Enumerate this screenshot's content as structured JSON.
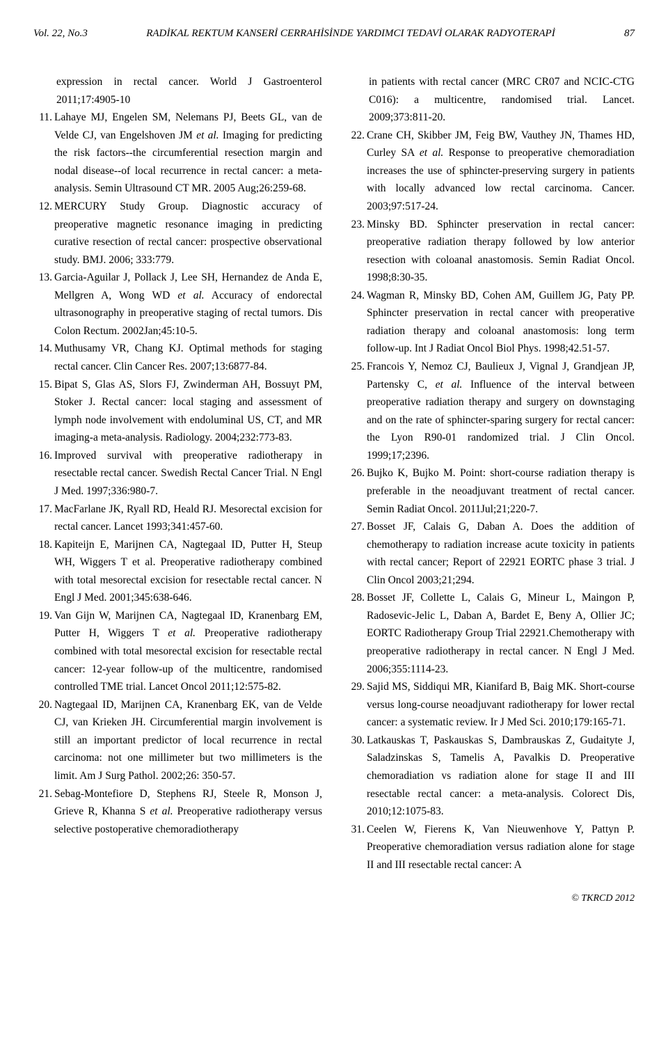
{
  "header": {
    "volume": "Vol. 22, No.3",
    "title": "RADİKAL REKTUM KANSERİ CERRAHİSİNDE YARDIMCI TEDAVİ OLARAK RADYOTERAPİ",
    "page": "87"
  },
  "left_continuation": "expression in rectal cancer. World J Gastroenterol 2011;17:4905-10",
  "refs_left": [
    {
      "n": "11.",
      "text": "Lahaye MJ, Engelen SM, Nelemans PJ, Beets GL, van de Velde CJ, van Engelshoven JM <span class='italic'>et al.</span> Imaging for predicting the risk factors--the circumferential resection margin and nodal disease--of local recurrence in rectal cancer: a meta-analysis. Semin Ultrasound CT MR. 2005 Aug;26:259-68."
    },
    {
      "n": "12.",
      "text": "MERCURY Study Group. Diagnostic accuracy of preoperative magnetic resonance imaging in predicting curative resection of rectal cancer: prospective observational study. BMJ. 2006; 333:779."
    },
    {
      "n": "13.",
      "text": "Garcia-Aguilar J, Pollack J, Lee SH, Hernandez de Anda E, Mellgren A, Wong WD <span class='italic'>et al.</span> Accuracy of endorectal ultrasonography in preoperative staging of rectal tumors. Dis Colon Rectum. 2002Jan;45:10-5."
    },
    {
      "n": "14.",
      "text": "Muthusamy VR, Chang KJ. Optimal methods for staging rectal cancer. Clin Cancer Res. 2007;13:6877-84."
    },
    {
      "n": "15.",
      "text": "Bipat S, Glas AS, Slors FJ, Zwinderman AH, Bossuyt PM, Stoker J. Rectal cancer: local staging and assessment of lymph node involvement with endoluminal US, CT, and MR imaging-a meta-analysis. Radiology. 2004;232:773-83."
    },
    {
      "n": "16.",
      "text": "Improved survival with preoperative radiotherapy in resectable rectal cancer. Swedish Rectal Cancer Trial. N Engl J Med. 1997;336:980-7."
    },
    {
      "n": "17.",
      "text": "MacFarlane JK, Ryall RD, Heald RJ. Mesorectal excision for rectal cancer. Lancet 1993;341:457-60."
    },
    {
      "n": "18.",
      "text": "Kapiteijn E, Marijnen CA, Nagtegaal ID, Putter H, Steup WH, Wiggers T et al. Preoperative radiotherapy combined with total mesorectal excision for resectable rectal cancer. N Engl J Med. 2001;345:638-646."
    },
    {
      "n": "19.",
      "text": "Van Gijn W, Marijnen CA, Nagtegaal ID, Kranenbarg EM, Putter H, Wiggers T <span class='italic'>et al.</span> Preoperative radiotherapy combined with total mesorectal excision for resectable rectal cancer: 12-year follow-up of the multicentre, randomised controlled TME trial. Lancet Oncol 2011;12:575-82."
    },
    {
      "n": "20.",
      "text": "Nagtegaal ID, Marijnen CA, Kranenbarg EK, van de Velde CJ, van Krieken JH. Circumferential margin involvement is still an important predictor of local recurrence in rectal carcinoma: not one millimeter but two millimeters is the limit. Am J Surg Pathol. 2002;26: 350-57."
    },
    {
      "n": "21.",
      "text": "Sebag-Montefiore D, Stephens RJ, Steele R, Monson J, Grieve R, Khanna S <span class='italic'>et al.</span> Preoperative radiotherapy versus selective postoperative chemoradiotherapy"
    }
  ],
  "right_continuation": "in patients with rectal cancer (MRC CR07 and NCIC-CTG C016): a multicentre, randomised trial. Lancet. 2009;373:811-20.",
  "refs_right": [
    {
      "n": "22.",
      "text": "Crane CH, Skibber JM, Feig BW, Vauthey JN, Thames HD, Curley SA <span class='italic'>et al.</span> Response to preoperative chemoradiation increases the use of sphincter-preserving surgery in patients with locally advanced low rectal carcinoma. Cancer. 2003;97:517-24."
    },
    {
      "n": "23.",
      "text": "Minsky BD. Sphincter preservation in rectal cancer: preoperative radiation therapy followed by low anterior resection with coloanal anastomosis. Semin Radiat Oncol. 1998;8:30-35."
    },
    {
      "n": "24.",
      "text": "Wagman R, Minsky BD, Cohen AM, Guillem JG, Paty PP. Sphincter preservation in rectal cancer with preoperative radiation therapy and coloanal anastomosis: long term follow-up. Int J Radiat Oncol Biol Phys. 1998;42.51-57."
    },
    {
      "n": "25.",
      "text": "Francois Y, Nemoz CJ, Baulieux J, Vignal J, Grandjean JP, Partensky C, <span class='italic'>et al.</span> Influence of the interval between preoperative radiation therapy and surgery on downstaging and on the rate of sphincter-sparing surgery for rectal cancer: the Lyon R90-01 randomized trial. J Clin Oncol. 1999;17;2396."
    },
    {
      "n": "26.",
      "text": "Bujko K, Bujko M. Point: short-course radiation therapy is preferable in the neoadjuvant treatment of rectal cancer. Semin Radiat Oncol. 2011Jul;21;220-7."
    },
    {
      "n": "27.",
      "text": "Bosset JF, Calais G, Daban A. Does the addition of chemotherapy to radiation increase acute toxicity in patients with rectal cancer; Report of 22921 EORTC phase 3 trial. J Clin Oncol 2003;21;294."
    },
    {
      "n": "28.",
      "text": "Bosset JF, Collette L, Calais G, Mineur L, Maingon P, Radosevic-Jelic L, Daban A, Bardet E, Beny A, Ollier JC; EORTC Radiotherapy Group Trial 22921.Chemotherapy with preoperative radiotherapy in rectal cancer. N Engl J Med. 2006;355:1114-23."
    },
    {
      "n": "29.",
      "text": "Sajid MS, Siddiqui MR, Kianifard B, Baig MK. Short-course versus long-course neoadjuvant radiotherapy for lower rectal cancer: a systematic review. Ir J Med Sci. 2010;179:165-71."
    },
    {
      "n": "30.",
      "text": "Latkauskas T, Paskauskas S, Dambrauskas Z, Gudaityte J, Saladzinskas S, Tamelis A, Pavalkis D. Preoperative chemoradiation vs radiation alone for stage II and III resectable rectal cancer: a meta-analysis. Colorect Dis, 2010;12:1075-83."
    },
    {
      "n": "31.",
      "text": "Ceelen W, Fierens K, Van Nieuwenhove Y, Pattyn P. Preoperative chemoradiation versus radiation alone for stage II and III resectable rectal cancer: A"
    }
  ],
  "footer": "© TKRCD 2012"
}
